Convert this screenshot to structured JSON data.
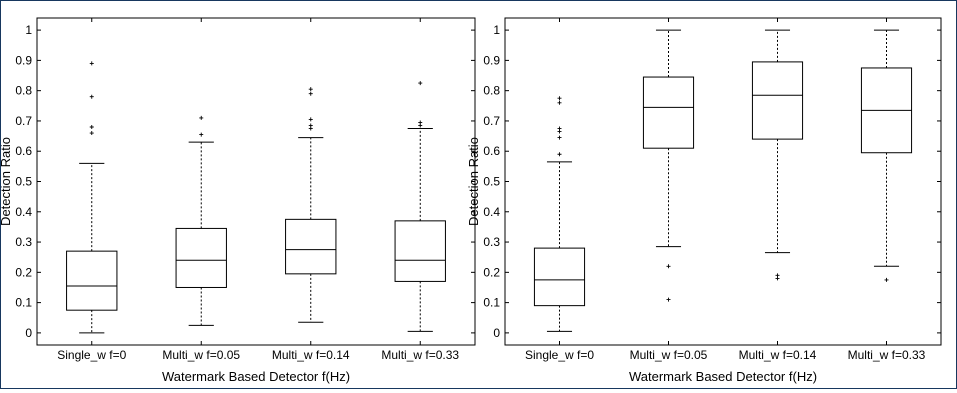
{
  "chart_data": [
    {
      "type": "boxplot",
      "xlabel": "Watermark Based Detector f(Hz)",
      "ylabel": "Detection Ratio",
      "ylim": [
        -0.04,
        1.04
      ],
      "yticks": [
        "0",
        "0.1",
        "0.2",
        "0.3",
        "0.4",
        "0.5",
        "0.6",
        "0.7",
        "0.8",
        "0.9",
        "1"
      ],
      "categories": [
        "Single_w f=0",
        "Multi_w f=0.05",
        "Multi_w f=0.14",
        "Multi_w f=0.33"
      ],
      "boxes": [
        {
          "min": 0.0,
          "q1": 0.075,
          "median": 0.155,
          "q3": 0.27,
          "max": 0.56,
          "outliers": [
            0.66,
            0.68,
            0.78,
            0.89
          ]
        },
        {
          "min": 0.025,
          "q1": 0.15,
          "median": 0.24,
          "q3": 0.345,
          "max": 0.63,
          "outliers": [
            0.655,
            0.71
          ]
        },
        {
          "min": 0.035,
          "q1": 0.195,
          "median": 0.275,
          "q3": 0.375,
          "max": 0.645,
          "outliers": [
            0.675,
            0.685,
            0.705,
            0.79,
            0.805
          ]
        },
        {
          "min": 0.005,
          "q1": 0.17,
          "median": 0.24,
          "q3": 0.37,
          "max": 0.675,
          "outliers": [
            0.685,
            0.695,
            0.825
          ]
        }
      ]
    },
    {
      "type": "boxplot",
      "xlabel": "Watermark Based Detector f(Hz)",
      "ylabel": "Detection Ratio",
      "ylim": [
        -0.04,
        1.04
      ],
      "yticks": [
        "0",
        "0.1",
        "0.2",
        "0.3",
        "0.4",
        "0.5",
        "0.6",
        "0.7",
        "0.8",
        "0.9",
        "1"
      ],
      "categories": [
        "Single_w f=0",
        "Multi_w f=0.05",
        "Multi_w f=0.14",
        "Multi_w f=0.33"
      ],
      "boxes": [
        {
          "min": 0.005,
          "q1": 0.09,
          "median": 0.175,
          "q3": 0.28,
          "max": 0.565,
          "outliers": [
            0.59,
            0.645,
            0.665,
            0.675,
            0.76,
            0.775
          ]
        },
        {
          "min": 0.285,
          "q1": 0.61,
          "median": 0.745,
          "q3": 0.845,
          "max": 1.0,
          "outliers": [
            0.11,
            0.22
          ]
        },
        {
          "min": 0.265,
          "q1": 0.64,
          "median": 0.785,
          "q3": 0.895,
          "max": 1.0,
          "outliers": [
            0.18,
            0.19
          ]
        },
        {
          "min": 0.22,
          "q1": 0.595,
          "median": 0.735,
          "q3": 0.875,
          "max": 1.0,
          "outliers": [
            0.175
          ]
        }
      ]
    }
  ]
}
